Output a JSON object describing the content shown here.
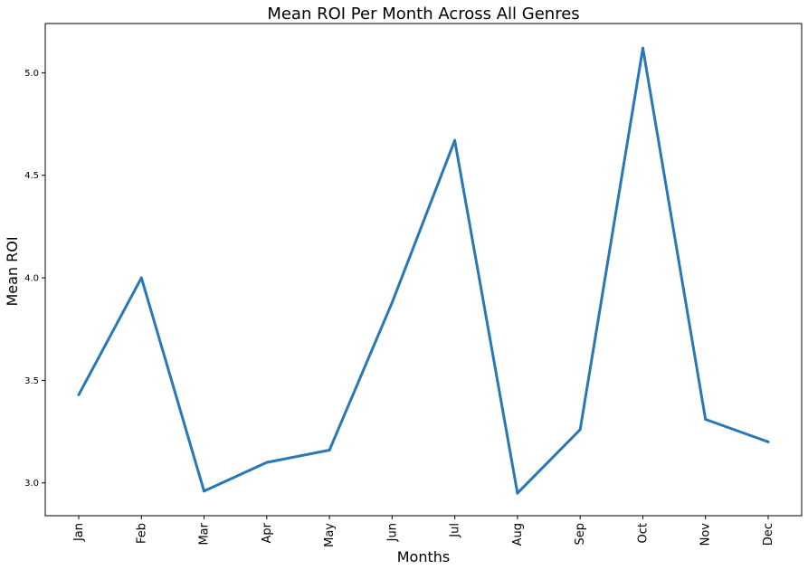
{
  "chart_data": {
    "type": "line",
    "title": "Mean ROI Per Month Across All Genres",
    "xlabel": "Months",
    "ylabel": "Mean ROI",
    "categories": [
      "Jan",
      "Feb",
      "Mar",
      "Apr",
      "May",
      "Jun",
      "Jul",
      "Aug",
      "Sep",
      "Oct",
      "Nov",
      "Dec"
    ],
    "series": [
      {
        "values": [
          3.43,
          4.0,
          2.96,
          3.1,
          3.16,
          3.88,
          4.67,
          2.95,
          3.26,
          5.12,
          3.31,
          3.2
        ],
        "color": "#2878b5"
      }
    ],
    "yticks": [
      "3.0",
      "3.5",
      "4.0",
      "4.5",
      "5.0"
    ],
    "ylim": [
      2.84,
      5.24
    ],
    "grid": false,
    "legend": "none"
  }
}
